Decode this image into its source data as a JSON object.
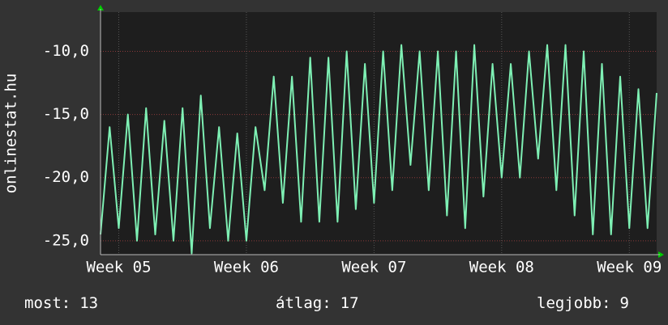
{
  "chart_data": {
    "type": "line",
    "y_label": "onlinestat.hu",
    "xlim": [
      0,
      30.5
    ],
    "ylim": [
      -26.1,
      -6.9
    ],
    "xticks": [
      {
        "value": 1,
        "label": "Week 05"
      },
      {
        "value": 8,
        "label": "Week 06"
      },
      {
        "value": 15,
        "label": "Week 07"
      },
      {
        "value": 22,
        "label": "Week 08"
      },
      {
        "value": 29,
        "label": "Week 09"
      }
    ],
    "yticks": [
      {
        "value": -25,
        "label": "-25,0"
      },
      {
        "value": -20,
        "label": "-20,0"
      },
      {
        "value": -15,
        "label": "-15,0"
      },
      {
        "value": -10,
        "label": "-10,0"
      }
    ],
    "grid": true,
    "series": [
      {
        "color": "#7ef0b4",
        "x": [
          0,
          0.5,
          1,
          1.5,
          2,
          2.5,
          3,
          3.5,
          4,
          4.5,
          5,
          5.5,
          6,
          6.5,
          7,
          7.5,
          8,
          8.5,
          9,
          9.5,
          10,
          10.5,
          11,
          11.5,
          12,
          12.5,
          13,
          13.5,
          14,
          14.5,
          15,
          15.5,
          16,
          16.5,
          17,
          17.5,
          18,
          18.5,
          19,
          19.5,
          20,
          20.5,
          21,
          21.5,
          22,
          22.5,
          23,
          23.5,
          24,
          24.5,
          25,
          25.5,
          26,
          26.5,
          27,
          27.5,
          28,
          28.5,
          29,
          29.5,
          30,
          30.5
        ],
        "values": [
          -24.5,
          -16,
          -24,
          -15,
          -25,
          -14.5,
          -24.5,
          -15.5,
          -25,
          -14.5,
          -26,
          -13.5,
          -24,
          -16,
          -25,
          -16.5,
          -25,
          -16,
          -21,
          -12,
          -22,
          -12,
          -23.5,
          -10.5,
          -23.5,
          -10.5,
          -23.5,
          -10,
          -22.5,
          -11,
          -22,
          -10,
          -21,
          -9.5,
          -19,
          -10,
          -21,
          -10,
          -23,
          -10,
          -24,
          -9.5,
          -21.5,
          -11,
          -20,
          -11,
          -20,
          -10,
          -18.5,
          -9.5,
          -21,
          -9.5,
          -23,
          -10,
          -24.5,
          -11,
          -24.5,
          -12,
          -24,
          -13,
          -24,
          -13.3
        ]
      }
    ],
    "stats": [
      {
        "name": "most:",
        "value": 13
      },
      {
        "name": "átlag:",
        "value": 17
      },
      {
        "name": "legjobb:",
        "value": 9
      }
    ]
  }
}
